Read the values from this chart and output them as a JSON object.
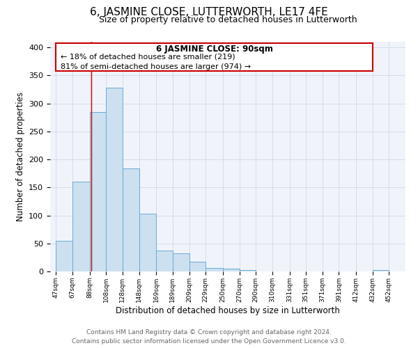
{
  "title": "6, JASMINE CLOSE, LUTTERWORTH, LE17 4FE",
  "subtitle": "Size of property relative to detached houses in Lutterworth",
  "xlabel": "Distribution of detached houses by size in Lutterworth",
  "ylabel": "Number of detached properties",
  "bar_left_edges": [
    47,
    67,
    88,
    108,
    128,
    148,
    169,
    189,
    209,
    229,
    250,
    270,
    290,
    310,
    331,
    351,
    371,
    391,
    412,
    432
  ],
  "bar_heights": [
    55,
    160,
    284,
    328,
    184,
    103,
    37,
    32,
    18,
    6,
    5,
    3,
    0,
    0,
    0,
    0,
    0,
    0,
    0,
    3
  ],
  "bar_widths": [
    20,
    21,
    20,
    20,
    20,
    21,
    20,
    20,
    20,
    21,
    20,
    20,
    20,
    21,
    20,
    20,
    20,
    21,
    20,
    20
  ],
  "bar_color": "#cce0f0",
  "bar_edge_color": "#6aaad4",
  "xtick_labels": [
    "47sqm",
    "67sqm",
    "88sqm",
    "108sqm",
    "128sqm",
    "148sqm",
    "169sqm",
    "189sqm",
    "209sqm",
    "229sqm",
    "250sqm",
    "270sqm",
    "290sqm",
    "310sqm",
    "331sqm",
    "351sqm",
    "371sqm",
    "391sqm",
    "412sqm",
    "432sqm",
    "452sqm"
  ],
  "ylim": [
    0,
    410
  ],
  "xlim": [
    40,
    472
  ],
  "yticks": [
    0,
    50,
    100,
    150,
    200,
    250,
    300,
    350,
    400
  ],
  "annotation_title": "6 JASMINE CLOSE: 90sqm",
  "annotation_line1": "← 18% of detached houses are smaller (219)",
  "annotation_line2": "81% of semi-detached houses are larger (974) →",
  "marker_x": 90,
  "box_color": "#ffffff",
  "box_edge_color": "#cc0000",
  "footer_line1": "Contains HM Land Registry data © Crown copyright and database right 2024.",
  "footer_line2": "Contains public sector information licensed under the Open Government Licence v3.0.",
  "title_fontsize": 11,
  "subtitle_fontsize": 9,
  "xlabel_fontsize": 8.5,
  "ylabel_fontsize": 8.5,
  "annotation_title_fontsize": 8.5,
  "annotation_text_fontsize": 8,
  "footer_fontsize": 6.5,
  "ytick_fontsize": 8,
  "xtick_fontsize": 6.5
}
